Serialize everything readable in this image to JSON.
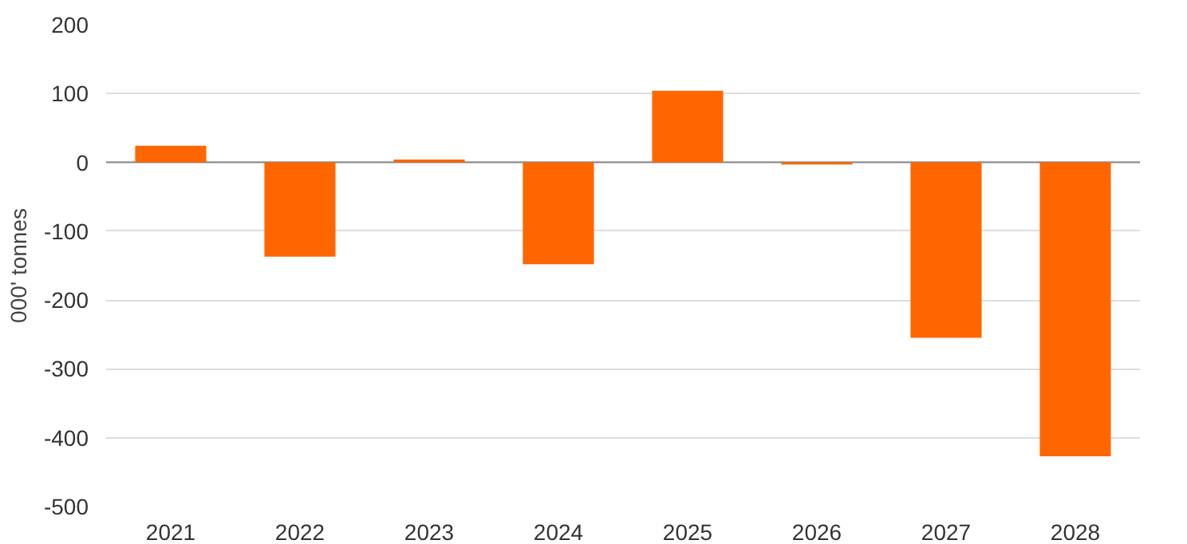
{
  "chart_data": {
    "type": "bar",
    "ylabel": "000' tonnes",
    "categories": [
      "2021",
      "2022",
      "2023",
      "2024",
      "2025",
      "2026",
      "2027",
      "2028"
    ],
    "values": [
      24,
      -137,
      4,
      -148,
      104,
      -3,
      -255,
      -427
    ],
    "color": "#ff6600",
    "ylim": [
      -500,
      200
    ],
    "yticks": [
      -500,
      -400,
      -300,
      -200,
      -100,
      0,
      100,
      200
    ],
    "grid": "y"
  }
}
